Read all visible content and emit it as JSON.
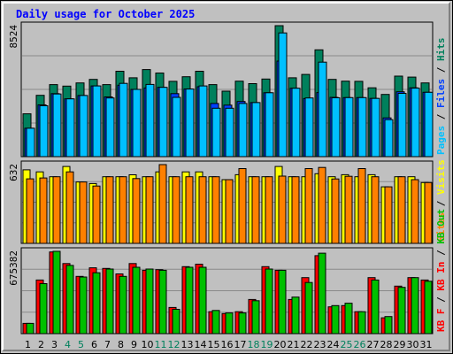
{
  "title": "Daily usage for October 2025",
  "colors": {
    "hits": "#00805c",
    "files": "#0040ff",
    "pages": "#00c0ff",
    "visits": "#ffff00",
    "sites": "#ff8000",
    "kbin": "#ff0000",
    "kbout": "#00c000",
    "title": "#0000ff",
    "weekday": "#000000",
    "weekend": "#00805c",
    "panel": "#c0c0c0",
    "slash": "#000000"
  },
  "chart_data": [
    {
      "type": "bar",
      "name": "hits-files-pages",
      "ymax": 8524,
      "max_label": "8524",
      "legend": [
        "Pages",
        "Files",
        "Hits"
      ],
      "series": [
        {
          "name": "Hits",
          "values": [
            2790,
            3990,
            4690,
            4590,
            4800,
            5030,
            4690,
            5560,
            5130,
            5670,
            5440,
            4900,
            5200,
            5560,
            4690,
            4260,
            4910,
            4750,
            5050,
            8524,
            5130,
            5350,
            6950,
            5030,
            4910,
            4900,
            4480,
            4050,
            5240,
            5180,
            4800
          ]
        },
        {
          "name": "Files",
          "values": [
            1850,
            3370,
            4100,
            3760,
            3980,
            4600,
            3890,
            4650,
            4380,
            4470,
            4510,
            4100,
            4400,
            4550,
            3460,
            3350,
            3590,
            3520,
            4160,
            6220,
            4450,
            3780,
            4170,
            3860,
            3840,
            3840,
            3790,
            2520,
            4220,
            4480,
            4190
          ]
        },
        {
          "name": "Pages",
          "values": [
            1850,
            3310,
            4080,
            3760,
            3980,
            4600,
            3820,
            4770,
            4380,
            4700,
            4510,
            3860,
            4400,
            4600,
            3150,
            3150,
            3460,
            3520,
            4160,
            8050,
            4450,
            3820,
            6150,
            3830,
            3840,
            3840,
            3790,
            2410,
            4120,
            4460,
            4190
          ]
        }
      ]
    },
    {
      "type": "bar",
      "name": "visits-sites",
      "ymax": 632,
      "max_label": "632",
      "legend": [
        "Sites",
        "Visits"
      ],
      "series": [
        {
          "name": "Visits",
          "values": [
            590,
            574,
            535,
            617,
            493,
            480,
            535,
            535,
            550,
            535,
            574,
            535,
            574,
            574,
            535,
            511,
            551,
            535,
            535,
            617,
            535,
            535,
            559,
            535,
            551,
            535,
            551,
            454,
            535,
            535,
            488
          ]
        },
        {
          "name": "Sites",
          "values": [
            518,
            525,
            535,
            574,
            493,
            460,
            535,
            535,
            520,
            535,
            632,
            535,
            535,
            535,
            535,
            511,
            600,
            535,
            535,
            540,
            535,
            600,
            609,
            517,
            538,
            600,
            535,
            454,
            535,
            511,
            488
          ]
        }
      ]
    },
    {
      "type": "bar",
      "name": "kbin-kbout",
      "ymax": 675382,
      "max_label": "675382",
      "legend": [
        "KB F",
        "KB In",
        "KB Out"
      ],
      "series": [
        {
          "name": "KB In",
          "values": [
            84500,
            440000,
            670000,
            575000,
            470000,
            540000,
            535000,
            490000,
            575000,
            520000,
            525000,
            215000,
            550000,
            570000,
            180000,
            165000,
            180000,
            280000,
            550000,
            520000,
            280000,
            460000,
            640000,
            220000,
            230000,
            180000,
            460000,
            130000,
            390000,
            460000,
            440000
          ]
        },
        {
          "name": "KB Out",
          "values": [
            84500,
            410000,
            675382,
            560000,
            465000,
            500000,
            530000,
            470000,
            545000,
            530000,
            520000,
            200000,
            545000,
            545000,
            190000,
            170000,
            170000,
            270000,
            530000,
            520000,
            300000,
            420000,
            660000,
            230000,
            250000,
            180000,
            440000,
            140000,
            380000,
            460000,
            430000
          ]
        }
      ]
    }
  ],
  "days": [
    {
      "label": "1",
      "weekend": false
    },
    {
      "label": "2",
      "weekend": false
    },
    {
      "label": "3",
      "weekend": false
    },
    {
      "label": "4",
      "weekend": true
    },
    {
      "label": "5",
      "weekend": true
    },
    {
      "label": "6",
      "weekend": false
    },
    {
      "label": "7",
      "weekend": false
    },
    {
      "label": "8",
      "weekend": false
    },
    {
      "label": "9",
      "weekend": false
    },
    {
      "label": "10",
      "weekend": false
    },
    {
      "label": "11",
      "weekend": true
    },
    {
      "label": "12",
      "weekend": true
    },
    {
      "label": "13",
      "weekend": false
    },
    {
      "label": "14",
      "weekend": false
    },
    {
      "label": "15",
      "weekend": false
    },
    {
      "label": "16",
      "weekend": false
    },
    {
      "label": "17",
      "weekend": false
    },
    {
      "label": "18",
      "weekend": true
    },
    {
      "label": "19",
      "weekend": true
    },
    {
      "label": "20",
      "weekend": false
    },
    {
      "label": "21",
      "weekend": false
    },
    {
      "label": "22",
      "weekend": false
    },
    {
      "label": "23",
      "weekend": false
    },
    {
      "label": "24",
      "weekend": false
    },
    {
      "label": "25",
      "weekend": true
    },
    {
      "label": "26",
      "weekend": true
    },
    {
      "label": "27",
      "weekend": false
    },
    {
      "label": "28",
      "weekend": false
    },
    {
      "label": "29",
      "weekend": false
    },
    {
      "label": "30",
      "weekend": false
    },
    {
      "label": "31",
      "weekend": false
    }
  ]
}
